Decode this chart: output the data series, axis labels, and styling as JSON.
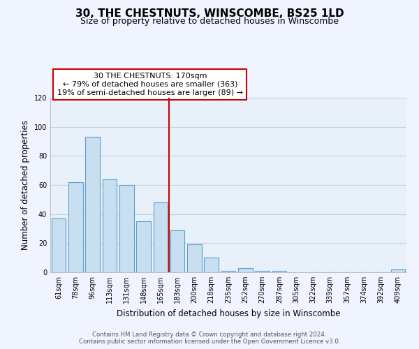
{
  "title": "30, THE CHESTNUTS, WINSCOMBE, BS25 1LD",
  "subtitle": "Size of property relative to detached houses in Winscombe",
  "xlabel": "Distribution of detached houses by size in Winscombe",
  "ylabel": "Number of detached properties",
  "bar_labels": [
    "61sqm",
    "78sqm",
    "96sqm",
    "113sqm",
    "131sqm",
    "148sqm",
    "165sqm",
    "183sqm",
    "200sqm",
    "218sqm",
    "235sqm",
    "252sqm",
    "270sqm",
    "287sqm",
    "305sqm",
    "322sqm",
    "339sqm",
    "357sqm",
    "374sqm",
    "392sqm",
    "409sqm"
  ],
  "bar_values": [
    37,
    62,
    93,
    64,
    60,
    35,
    48,
    29,
    19,
    10,
    1,
    3,
    1,
    1,
    0,
    0,
    0,
    0,
    0,
    0,
    2
  ],
  "bar_color": "#c8dff0",
  "bar_edge_color": "#5b9fcc",
  "vline_x": 6.5,
  "vline_color": "#cc0000",
  "annotation_line1": "30 THE CHESTNUTS: 170sqm",
  "annotation_line2": "← 79% of detached houses are smaller (363)",
  "annotation_line3": "19% of semi-detached houses are larger (89) →",
  "ylim": [
    0,
    120
  ],
  "yticks": [
    0,
    20,
    40,
    60,
    80,
    100,
    120
  ],
  "footnote1": "Contains HM Land Registry data © Crown copyright and database right 2024.",
  "footnote2": "Contains public sector information licensed under the Open Government Licence v3.0.",
  "bg_color": "#f0f4ff",
  "plot_bg_color": "#e8f0fa",
  "grid_color": "#c0d0e8"
}
